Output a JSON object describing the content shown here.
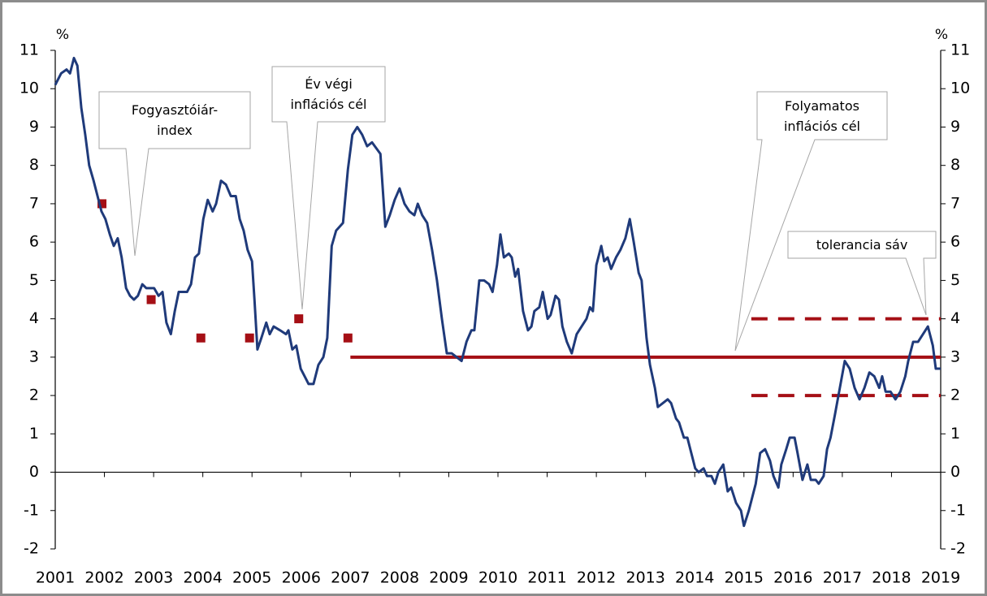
{
  "chart_data": {
    "type": "line",
    "ylabel": "%",
    "y2label": "%",
    "xlim": [
      2001,
      2019
    ],
    "xticks": [
      2001,
      2002,
      2003,
      2004,
      2005,
      2006,
      2007,
      2008,
      2009,
      2010,
      2011,
      2012,
      2013,
      2014,
      2015,
      2016,
      2017,
      2018,
      2019
    ],
    "ylim": [
      -2,
      11
    ],
    "yticks": [
      -2,
      -1,
      0,
      1,
      2,
      3,
      4,
      5,
      6,
      7,
      8,
      9,
      10,
      11
    ],
    "y2lim": [
      -2,
      11
    ],
    "y2ticks": [
      -2,
      -1,
      0,
      1,
      2,
      3,
      4,
      5,
      6,
      7,
      8,
      9,
      10,
      11
    ],
    "series": [
      {
        "name": "Fogyasztóiár-\nindex",
        "style": "line",
        "color": "#1f3a7a",
        "x": [
          2001.0,
          2001.12,
          2001.23,
          2001.3,
          2001.38,
          2001.45,
          2001.53,
          2001.61,
          2001.69,
          2001.78,
          2001.86,
          2001.94,
          2002.02,
          2002.11,
          2002.19,
          2002.27,
          2002.35,
          2002.44,
          2002.52,
          2002.6,
          2002.68,
          2002.77,
          2002.85,
          2003.01,
          2003.1,
          2003.18,
          2003.26,
          2003.35,
          2003.43,
          2003.51,
          2003.68,
          2003.76,
          2003.84,
          2003.92,
          2004.01,
          2004.1,
          2004.2,
          2004.27,
          2004.37,
          2004.47,
          2004.57,
          2004.67,
          2004.75,
          2004.83,
          2004.91,
          2005.0,
          2005.05,
          2005.11,
          2005.19,
          2005.29,
          2005.36,
          2005.44,
          2005.57,
          2005.69,
          2005.74,
          2005.82,
          2005.9,
          2005.99,
          2006.07,
          2006.15,
          2006.25,
          2006.35,
          2006.45,
          2006.53,
          2006.62,
          2006.71,
          2006.85,
          2006.95,
          2007.04,
          2007.14,
          2007.24,
          2007.34,
          2007.44,
          2007.61,
          2007.71,
          2007.8,
          2007.9,
          2008.0,
          2008.1,
          2008.2,
          2008.3,
          2008.37,
          2008.46,
          2008.56,
          2008.66,
          2008.76,
          2008.86,
          2008.96,
          2009.06,
          2009.16,
          2009.26,
          2009.36,
          2009.46,
          2009.52,
          2009.62,
          2009.72,
          2009.82,
          2009.89,
          2009.98,
          2010.05,
          2010.12,
          2010.22,
          2010.28,
          2010.35,
          2010.41,
          2010.51,
          2010.61,
          2010.68,
          2010.74,
          2010.84,
          2010.91,
          2011.01,
          2011.07,
          2011.17,
          2011.24,
          2011.31,
          2011.4,
          2011.5,
          2011.6,
          2011.7,
          2011.8,
          2011.87,
          2011.93,
          2012.0,
          2012.1,
          2012.16,
          2012.23,
          2012.3,
          2012.4,
          2012.49,
          2012.59,
          2012.68,
          2012.76,
          2012.86,
          2012.92,
          2013.02,
          2013.09,
          2013.19,
          2013.25,
          2013.35,
          2013.45,
          2013.52,
          2013.62,
          2013.68,
          2013.78,
          2013.85,
          2013.91,
          2014.01,
          2014.08,
          2014.18,
          2014.25,
          2014.34,
          2014.41,
          2014.48,
          2014.58,
          2014.67,
          2014.74,
          2014.84,
          2014.94,
          2015.0,
          2015.1,
          2015.24,
          2015.33,
          2015.43,
          2015.53,
          2015.6,
          2015.7,
          2015.76,
          2015.86,
          2015.93,
          2016.03,
          2016.09,
          2016.19,
          2016.29,
          2016.36,
          2016.46,
          2016.52,
          2016.62,
          2016.69,
          2016.76,
          2016.85,
          2016.95,
          2017.05,
          2017.15,
          2017.25,
          2017.35,
          2017.45,
          2017.55,
          2017.65,
          2017.75,
          2017.81,
          2017.88,
          2017.98,
          2018.08,
          2018.18,
          2018.28,
          2018.34,
          2018.44,
          2018.54,
          2018.64,
          2018.74,
          2018.84,
          2018.9,
          2019.0
        ],
        "values": [
          10.1,
          10.4,
          10.5,
          10.4,
          10.8,
          10.6,
          9.5,
          8.8,
          8.0,
          7.6,
          7.2,
          6.8,
          6.6,
          6.2,
          5.9,
          6.1,
          5.6,
          4.8,
          4.6,
          4.5,
          4.6,
          4.9,
          4.8,
          4.8,
          4.6,
          4.7,
          3.9,
          3.6,
          4.2,
          4.7,
          4.7,
          4.9,
          5.6,
          5.7,
          6.6,
          7.1,
          6.8,
          7.0,
          7.6,
          7.5,
          7.2,
          7.2,
          6.6,
          6.3,
          5.8,
          5.5,
          4.5,
          3.2,
          3.5,
          3.9,
          3.6,
          3.8,
          3.7,
          3.6,
          3.7,
          3.2,
          3.3,
          2.7,
          2.5,
          2.3,
          2.3,
          2.8,
          3.0,
          3.5,
          5.9,
          6.3,
          6.5,
          7.9,
          8.8,
          9.0,
          8.8,
          8.5,
          8.6,
          8.3,
          6.4,
          6.7,
          7.1,
          7.4,
          7.0,
          6.8,
          6.7,
          7.0,
          6.7,
          6.5,
          5.8,
          5.0,
          4.0,
          3.1,
          3.1,
          3.0,
          2.9,
          3.4,
          3.7,
          3.7,
          5.0,
          5.0,
          4.9,
          4.7,
          5.4,
          6.2,
          5.6,
          5.7,
          5.6,
          5.1,
          5.3,
          4.2,
          3.7,
          3.8,
          4.2,
          4.3,
          4.7,
          4.0,
          4.1,
          4.6,
          4.5,
          3.8,
          3.4,
          3.1,
          3.6,
          3.8,
          4.0,
          4.3,
          4.2,
          5.4,
          5.9,
          5.5,
          5.6,
          5.3,
          5.6,
          5.8,
          6.1,
          6.6,
          6.0,
          5.2,
          5.0,
          3.5,
          2.8,
          2.2,
          1.7,
          1.8,
          1.9,
          1.8,
          1.4,
          1.3,
          0.9,
          0.9,
          0.6,
          0.1,
          0.0,
          0.1,
          -0.1,
          -0.1,
          -0.3,
          0.0,
          0.2,
          -0.5,
          -0.4,
          -0.8,
          -1.0,
          -1.4,
          -1.0,
          -0.3,
          0.5,
          0.6,
          0.3,
          -0.1,
          -0.4,
          0.2,
          0.6,
          0.9,
          0.9,
          0.5,
          -0.2,
          0.2,
          -0.2,
          -0.2,
          -0.3,
          -0.1,
          0.6,
          0.9,
          1.5,
          2.2,
          2.9,
          2.7,
          2.2,
          1.9,
          2.2,
          2.6,
          2.5,
          2.2,
          2.5,
          2.1,
          2.1,
          1.9,
          2.1,
          2.5,
          2.9,
          3.4,
          3.4,
          3.6,
          3.8,
          3.3,
          2.7,
          2.7
        ]
      },
      {
        "name": "Év végi\ninflációs cél",
        "style": "markers",
        "color": "#a50f15",
        "x": [
          2001.95,
          2002.95,
          2003.96,
          2004.95,
          2005.95,
          2006.95
        ],
        "values": [
          7,
          4.5,
          3.5,
          3.5,
          4,
          3.5
        ]
      },
      {
        "name": "Folyamatos\ninflációs cél",
        "style": "line",
        "color": "#a50f15",
        "x": [
          2007,
          2019
        ],
        "values": [
          3,
          3
        ]
      },
      {
        "name": "tolerancia sáv",
        "style": "band-dashed",
        "color": "#a50f15",
        "x": [
          2015.15,
          2019
        ],
        "upper": [
          4,
          4
        ],
        "lower": [
          2,
          2
        ]
      }
    ]
  }
}
